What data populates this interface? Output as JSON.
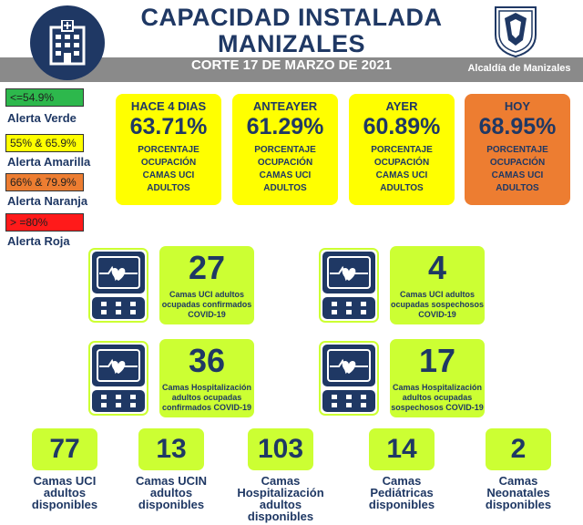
{
  "header": {
    "title_line1": "CAPACIDAD INSTALADA",
    "title_line2": "MANIZALES",
    "subtitle": "CORTE 17  DE MARZO DE 2021",
    "org": "Alcaldía de Manizales",
    "logo_icon": "hospital-building-icon",
    "shield_icon": "coat-of-arms-icon"
  },
  "legend": [
    {
      "range": "<=54.9%",
      "label": "Alerta Verde",
      "color": "#2db84c"
    },
    {
      "range": "55% & 65.9%",
      "label": "Alerta Amarilla",
      "color": "#ffff00"
    },
    {
      "range": "66% & 79.9%",
      "label": "Alerta Naranja",
      "color": "#ed7d31"
    },
    {
      "range": "> =80%",
      "label": "Alerta Roja",
      "color": "#ff1a1a"
    }
  ],
  "occupancy": [
    {
      "period": "HACE 4 DIAS",
      "value": "63.71%",
      "desc": [
        "PORCENTAJE",
        "OCUPACIÓN",
        "CAMAS UCI",
        "ADULTOS"
      ],
      "color": "#ffff00"
    },
    {
      "period": "ANTEAYER",
      "value": "61.29%",
      "desc": [
        "PORCENTAJE",
        "OCUPACIÓN",
        "CAMAS UCI",
        "ADULTOS"
      ],
      "color": "#ffff00"
    },
    {
      "period": "AYER",
      "value": "60.89%",
      "desc": [
        "PORCENTAJE",
        "OCUPACIÓN",
        "CAMAS UCI",
        "ADULTOS"
      ],
      "color": "#ffff00"
    },
    {
      "period": "HOY",
      "value": "68.95%",
      "desc": [
        "PORCENTAJE",
        "OCUPACIÓN",
        "CAMAS UCI",
        "ADULTOS"
      ],
      "color": "#ed7d31"
    }
  ],
  "stats": [
    {
      "value": "27",
      "text": [
        "Camas UCI adultos",
        "ocupadas confirmados",
        "COVID-19"
      ],
      "icon": "heart-monitor-icon"
    },
    {
      "value": "4",
      "text": [
        "Camas UCI adultos",
        "ocupadas sospechosos",
        "COVID-19"
      ],
      "icon": "heart-monitor-icon"
    },
    {
      "value": "36",
      "text": [
        "Camas  Hospitalización",
        "adultos ocupadas",
        "confirmados COVID-19"
      ],
      "icon": "heart-monitor-icon"
    },
    {
      "value": "17",
      "text": [
        "Camas  Hospitalización",
        "adultos ocupadas",
        "sospechosos COVID-19"
      ],
      "icon": "heart-monitor-icon"
    }
  ],
  "available": [
    {
      "value": "77",
      "label": [
        "Camas UCI",
        "adultos",
        "disponibles"
      ]
    },
    {
      "value": "13",
      "label": [
        "Camas UCIN",
        "adultos",
        "disponibles"
      ]
    },
    {
      "value": "103",
      "label": [
        "Camas",
        "Hospitalización",
        "adultos",
        "disponibles"
      ]
    },
    {
      "value": "14",
      "label": [
        "Camas",
        "Pediátricas",
        "disponibles"
      ]
    },
    {
      "value": "2",
      "label": [
        "Camas",
        "Neonatales",
        "disponibles"
      ]
    }
  ]
}
